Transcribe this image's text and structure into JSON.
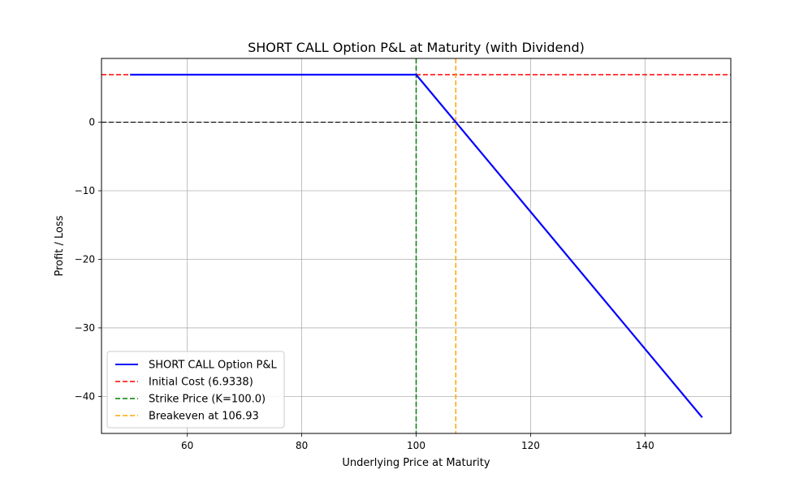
{
  "chart_data": {
    "type": "line",
    "title": "SHORT CALL Option P&L at Maturity (with Dividend)",
    "xlabel": "Underlying Price at Maturity",
    "ylabel": "Profit / Loss",
    "xlim": [
      45,
      155
    ],
    "ylim": [
      -45.4,
      9.3
    ],
    "xticks": [
      60,
      80,
      100,
      120,
      140
    ],
    "yticks": [
      0,
      -10,
      -20,
      -30,
      -40
    ],
    "grid": true,
    "legend_position": "lower-left",
    "series": [
      {
        "name": "SHORT CALL Option P&L",
        "color": "#0000ff",
        "style": "solid",
        "x": [
          50,
          100,
          150
        ],
        "y": [
          6.9338,
          6.9338,
          -43.0662
        ]
      }
    ],
    "reference_lines": [
      {
        "name": "Initial Cost (6.9338)",
        "orientation": "horizontal",
        "value": 6.9338,
        "color": "#ff0000",
        "style": "dashed"
      },
      {
        "name": "Strike Price (K=100.0)",
        "orientation": "vertical",
        "value": 100,
        "color": "#008000",
        "style": "dashed"
      },
      {
        "name": "Breakeven at 106.93",
        "orientation": "vertical",
        "value": 106.93,
        "color": "#ffa500",
        "style": "dashed"
      }
    ],
    "zero_line": {
      "value": 0,
      "color": "#000000",
      "style": "dashed"
    }
  }
}
